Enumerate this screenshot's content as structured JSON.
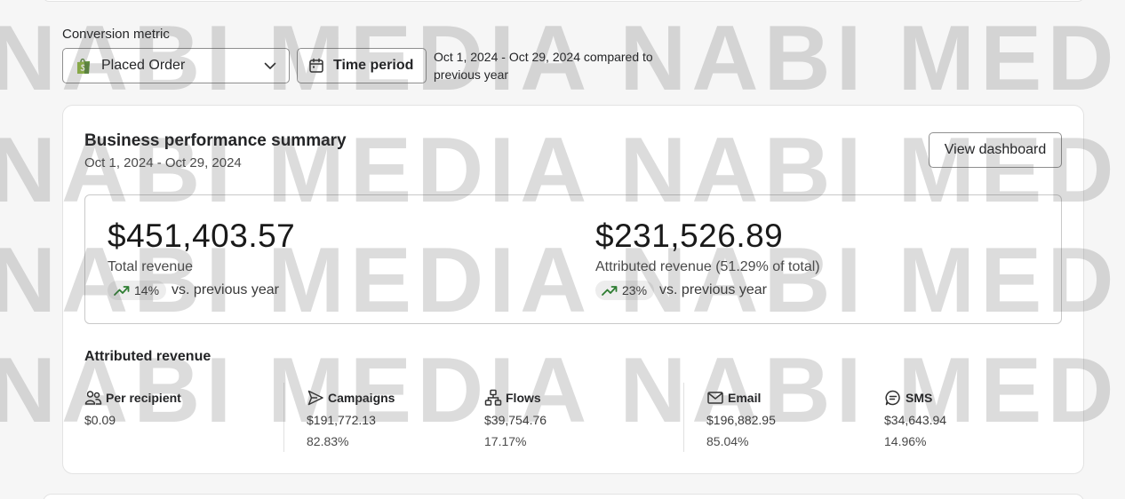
{
  "filters": {
    "conversion_metric_label": "Conversion metric",
    "conversion_metric_value": "Placed Order",
    "time_period_label": "Time period",
    "period_text": "Oct 1, 2024 - Oct 29, 2024 compared to previous year"
  },
  "summary": {
    "title": "Business performance summary",
    "date_range": "Oct 1, 2024 - Oct 29, 2024",
    "view_dashboard_label": "View dashboard",
    "total_revenue": {
      "value": "$451,403.57",
      "label": "Total revenue",
      "change": "14%",
      "change_text": "vs. previous year"
    },
    "attributed_revenue": {
      "value": "$231,526.89",
      "label": "Attributed revenue (51.29% of total)",
      "change": "23%",
      "change_text": "vs. previous year"
    }
  },
  "attributed": {
    "title": "Attributed revenue",
    "metrics": [
      {
        "icon": "people-icon",
        "label": "Per recipient",
        "value": "$0.09",
        "pct": ""
      },
      {
        "icon": "send-icon",
        "label": "Campaigns",
        "value": "$191,772.13",
        "pct": "82.83%"
      },
      {
        "icon": "flow-icon",
        "label": "Flows",
        "value": "$39,754.76",
        "pct": "17.17%"
      },
      {
        "icon": "email-icon",
        "label": "Email",
        "value": "$196,882.95",
        "pct": "85.04%"
      },
      {
        "icon": "sms-icon",
        "label": "SMS",
        "value": "$34,643.94",
        "pct": "14.96%"
      }
    ]
  },
  "watermark": "NABI MEDIA NABI MEDIA NABI MEDIA",
  "colors": {
    "trend_up": "#2e7d32",
    "shopify_green": "#5e8e3e",
    "border": "#8f8f8f"
  }
}
